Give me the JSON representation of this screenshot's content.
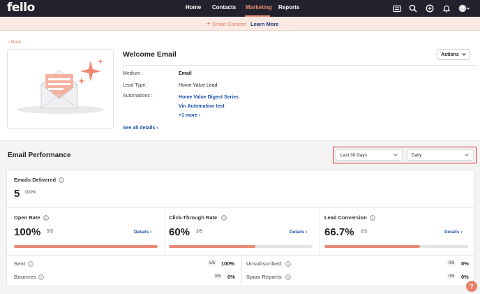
{
  "nav": {
    "logo": "fello",
    "items": [
      "Home",
      "Contacts",
      "Marketing",
      "Reports"
    ],
    "active": "Marketing",
    "icons": [
      "newspaper-icon",
      "search-icon",
      "add-circle-icon",
      "bell-icon",
      "avatar-icon"
    ]
  },
  "banner": {
    "text": "Smart Content",
    "link": "Learn More",
    "icon": "sparkle-icon"
  },
  "back_label": "Back",
  "email": {
    "title": "Welcome Email",
    "actions_label": "Actions",
    "medium_label": "Medium :",
    "medium_value": "Email",
    "lead_type_label": "Lead Type:",
    "lead_type_value": "Home Value Lead",
    "automations_label": "Automations :",
    "automations": [
      "Home Value Digest Series",
      "Vin Automation test"
    ],
    "more_label": "+1 more",
    "see_all_label": "See all details"
  },
  "performance": {
    "title": "Email Performance",
    "range_select": "Last 30 Days",
    "interval_select": "Daily",
    "delivered": {
      "label": "Emails Delivered",
      "value": "5",
      "pct": "100%"
    },
    "metrics": [
      {
        "label": "Open Rate",
        "value": "100%",
        "frac": "5/5",
        "details": "Details",
        "fill": 1.0
      },
      {
        "label": "Click-Through Rate",
        "value": "60%",
        "frac": "3/5",
        "details": "Details",
        "fill": 0.6
      },
      {
        "label": "Lead Conversion",
        "value": "66.7%",
        "frac": "2/3",
        "details": "Details",
        "fill": 0.667
      }
    ],
    "stats": [
      {
        "label": "Sent",
        "frac": "5/5",
        "pct": "100%"
      },
      {
        "label": "Bounces",
        "frac": "0/5",
        "pct": "0%"
      },
      {
        "label": "Unsubscribed",
        "frac": "0/5",
        "pct": "0%"
      },
      {
        "label": "Spam Reports",
        "frac": "0/5",
        "pct": "0%"
      }
    ]
  },
  "help_label": "?",
  "colors": {
    "accent": "#e88a75",
    "nav_bg": "#22222e",
    "link": "#1f4fa8",
    "highlight": "#d7282b"
  }
}
